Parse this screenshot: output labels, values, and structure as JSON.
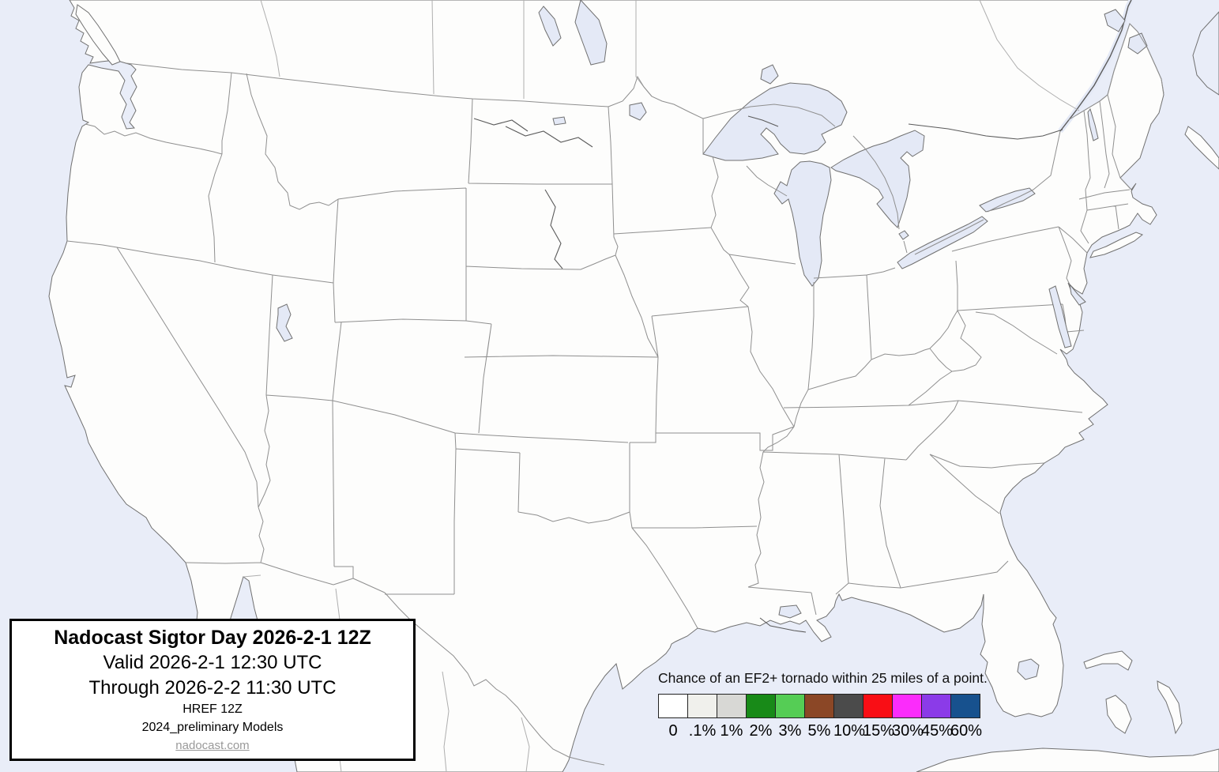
{
  "title_box": {
    "title": "Nadocast Sigtor Day 2026-2-1 12Z",
    "valid_line": "Valid 2026-2-1 12:30 UTC",
    "through_line": "Through 2026-2-2 11:30 UTC",
    "model_line1": "HREF 12Z",
    "model_line2": "2024_preliminary Models",
    "site_link": "nadocast.com"
  },
  "legend": {
    "title": "Chance of an EF2+ tornado within 25 miles of a point.",
    "entries": [
      {
        "label": "0",
        "color": "#ffffff"
      },
      {
        "label": ".1%",
        "color": "#f0f0ec"
      },
      {
        "label": "1%",
        "color": "#d8d8d5"
      },
      {
        "label": "2%",
        "color": "#188a18"
      },
      {
        "label": "3%",
        "color": "#55cd55"
      },
      {
        "label": "5%",
        "color": "#8b4726"
      },
      {
        "label": "10%",
        "color": "#4b4b4b"
      },
      {
        "label": "15%",
        "color": "#f90e15"
      },
      {
        "label": "30%",
        "color": "#fb2cfb"
      },
      {
        "label": "45%",
        "color": "#8b3be8"
      },
      {
        "label": "60%",
        "color": "#17518e"
      }
    ]
  },
  "colors": {
    "ocean": "#e9edf8",
    "land": "#fdfdfc",
    "lake": "#e4e9f6",
    "state_border": "#8f8f8f",
    "coast": "#707070",
    "river": "#5a5a5a",
    "faint_border": "#aeaeae"
  }
}
